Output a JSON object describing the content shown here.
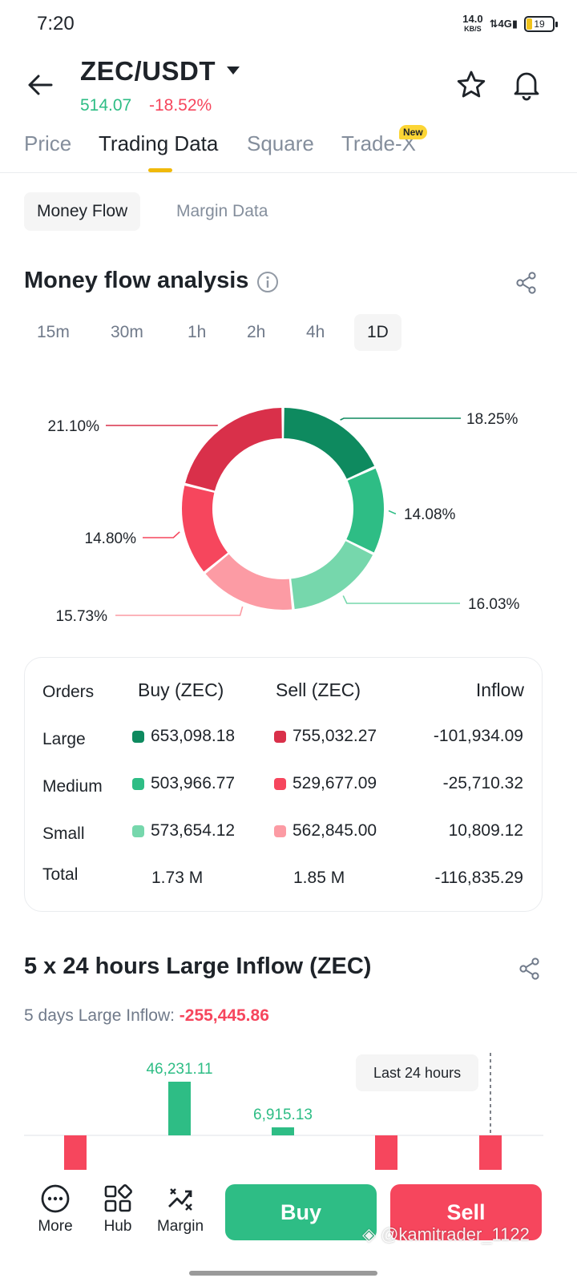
{
  "status_bar": {
    "time": "7:20",
    "net_speed": "14.0",
    "net_unit": "KB/S",
    "network": "4G",
    "battery": "19"
  },
  "header": {
    "pair": "ZEC/USDT",
    "price": "514.07",
    "change": "-18.52%"
  },
  "main_tabs": [
    {
      "label": "Price"
    },
    {
      "label": "Trading Data"
    },
    {
      "label": "Square"
    },
    {
      "label": "Trade-X"
    }
  ],
  "new_badge": "New",
  "sub_tabs": [
    {
      "label": "Money Flow"
    },
    {
      "label": "Margin Data"
    }
  ],
  "money_flow": {
    "title": "Money flow analysis",
    "periods": [
      "15m",
      "30m",
      "1h",
      "2h",
      "4h",
      "1D"
    ],
    "selected_period": "1D"
  },
  "chart_data": {
    "type": "pie",
    "title": "",
    "slices": [
      {
        "label": "Large Buy",
        "value": 18.25,
        "display": "18.25%",
        "color": "#0e8a5f"
      },
      {
        "label": "Medium Buy",
        "value": 14.08,
        "display": "14.08%",
        "color": "#2ebd85"
      },
      {
        "label": "Small Buy",
        "value": 16.03,
        "display": "16.03%",
        "color": "#76d7ac"
      },
      {
        "label": "Small Sell",
        "value": 15.73,
        "display": "15.73%",
        "color": "#fc9ba4"
      },
      {
        "label": "Medium Sell",
        "value": 14.8,
        "display": "14.80%",
        "color": "#f6465d"
      },
      {
        "label": "Large Sell",
        "value": 21.1,
        "display": "21.10%",
        "color": "#d9304a"
      }
    ]
  },
  "orders_table": {
    "headers": {
      "orders": "Orders",
      "buy": "Buy (ZEC)",
      "sell": "Sell (ZEC)",
      "inflow": "Inflow"
    },
    "rows": [
      {
        "label": "Large",
        "buy": "653,098.18",
        "sell": "755,032.27",
        "inflow": "-101,934.09",
        "buy_color": "#0e8a5f",
        "sell_color": "#d9304a"
      },
      {
        "label": "Medium",
        "buy": "503,966.77",
        "sell": "529,677.09",
        "inflow": "-25,710.32",
        "buy_color": "#2ebd85",
        "sell_color": "#f6465d"
      },
      {
        "label": "Small",
        "buy": "573,654.12",
        "sell": "562,845.00",
        "inflow": "10,809.12",
        "buy_color": "#76d7ac",
        "sell_color": "#fc9ba4"
      }
    ],
    "total": {
      "label": "Total",
      "buy": "1.73 M",
      "sell": "1.85 M",
      "inflow": "-116,835.29"
    }
  },
  "large_inflow": {
    "title": "5 x 24 hours Large Inflow (ZEC)",
    "subtitle_label": "5 days Large Inflow: ",
    "subtitle_value": "-255,445.86",
    "tooltip": "Last 24 hours"
  },
  "inflow_chart": {
    "type": "bar",
    "values": [
      null,
      46231.11,
      6915.13,
      null,
      null
    ],
    "labels": [
      "",
      "46,231.11",
      "6,915.13",
      "",
      ""
    ],
    "negative_visible": [
      true,
      false,
      false,
      true,
      true
    ]
  },
  "bottom_bar": {
    "more": "More",
    "hub": "Hub",
    "margin": "Margin",
    "buy": "Buy",
    "sell": "Sell"
  },
  "watermark": "@kamitrader_1122",
  "colors": {
    "green": "#2ebd85",
    "red": "#f6465d",
    "accent": "#f0b90b"
  }
}
